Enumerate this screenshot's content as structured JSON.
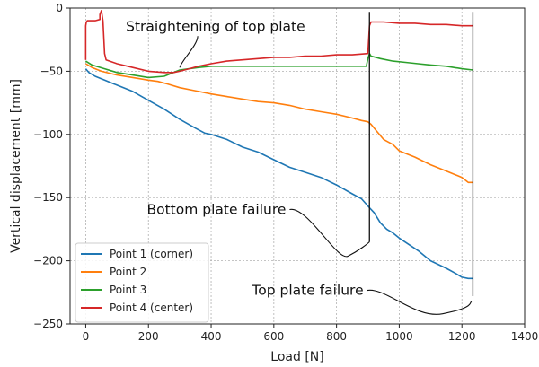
{
  "chart_data": {
    "type": "line",
    "xlabel": "Load [N]",
    "ylabel": "Vertical displacement  [mm]",
    "xlim": [
      -50,
      1400
    ],
    "ylim": [
      -250,
      0
    ],
    "xticks": [
      0,
      200,
      400,
      600,
      800,
      1000,
      1200,
      1400
    ],
    "yticks": [
      0,
      -50,
      -100,
      -150,
      -200,
      -250
    ],
    "grid": true,
    "legend_position": "lower-left",
    "series": [
      {
        "name": "Point 1 (corner)",
        "color": "#1f77b4",
        "x": [
          0,
          10,
          30,
          60,
          100,
          150,
          200,
          250,
          300,
          350,
          380,
          400,
          450,
          500,
          550,
          600,
          650,
          700,
          750,
          800,
          850,
          880,
          905,
          920,
          940,
          960,
          980,
          1000,
          1030,
          1060,
          1100,
          1150,
          1180,
          1200,
          1220,
          1235
        ],
        "y": [
          -48,
          -51,
          -54,
          -57,
          -61,
          -66,
          -73,
          -80,
          -88,
          -95,
          -99,
          -100,
          -104,
          -110,
          -114,
          -120,
          -126,
          -130,
          -134,
          -140,
          -147,
          -151,
          -158,
          -162,
          -170,
          -175,
          -178,
          -182,
          -187,
          -192,
          -200,
          -206,
          -210,
          -213,
          -214,
          -214
        ]
      },
      {
        "name": "Point 2",
        "color": "#ff7f0e",
        "x": [
          0,
          20,
          50,
          100,
          150,
          200,
          230,
          260,
          300,
          340,
          360,
          400,
          450,
          500,
          550,
          600,
          650,
          700,
          750,
          800,
          850,
          880,
          900,
          910,
          930,
          950,
          980,
          1000,
          1050,
          1100,
          1150,
          1200,
          1220,
          1235
        ],
        "y": [
          -44,
          -47,
          -50,
          -53,
          -55,
          -57,
          -58,
          -60,
          -63,
          -65,
          -66,
          -68,
          -70,
          -72,
          -74,
          -75,
          -77,
          -80,
          -82,
          -84,
          -87,
          -89,
          -90,
          -92,
          -98,
          -104,
          -108,
          -113,
          -118,
          -124,
          -129,
          -134,
          -138,
          -138
        ]
      },
      {
        "name": "Point 3",
        "color": "#2ca02c",
        "x": [
          0,
          20,
          60,
          100,
          150,
          200,
          250,
          280,
          300,
          330,
          360,
          400,
          450,
          500,
          550,
          600,
          650,
          700,
          750,
          800,
          850,
          895,
          900,
          905,
          910,
          940,
          980,
          1020,
          1060,
          1100,
          1150,
          1200,
          1235
        ],
        "y": [
          -42,
          -45,
          -48,
          -51,
          -53,
          -55,
          -54,
          -51,
          -49,
          -48,
          -47,
          -46,
          -46,
          -46,
          -46,
          -46,
          -46,
          -46,
          -46,
          -46,
          -46,
          -46,
          -40,
          -36,
          -38,
          -40,
          -42,
          -43,
          -44,
          -45,
          -46,
          -48,
          -49
        ]
      },
      {
        "name": "Point 4 (center)",
        "color": "#d62728",
        "x": [
          0,
          0,
          2,
          5,
          30,
          45,
          45,
          50,
          55,
          60,
          65,
          100,
          150,
          200,
          250,
          280,
          300,
          330,
          360,
          400,
          450,
          500,
          550,
          600,
          650,
          700,
          750,
          800,
          850,
          900,
          905,
          910,
          950,
          1000,
          1050,
          1100,
          1150,
          1200,
          1235
        ],
        "y": [
          -41,
          -14,
          -11,
          -10,
          -10,
          -9,
          -5,
          -2,
          -10,
          -36,
          -41,
          -44,
          -47,
          -50,
          -51,
          -51,
          -50,
          -48,
          -46,
          -44,
          -42,
          -41,
          -40,
          -39,
          -39,
          -38,
          -38,
          -37,
          -37,
          -36,
          -14,
          -11,
          -11,
          -12,
          -12,
          -13,
          -13,
          -14,
          -14
        ]
      }
    ],
    "annotations": [
      {
        "text": "Straightening of top plate",
        "x": 300,
        "y": -47,
        "label_x": 128,
        "label_y": -18
      },
      {
        "text": "Bottom plate failure",
        "x": 905,
        "y": -185,
        "label_x": 195,
        "label_y": -163
      },
      {
        "text": "Top plate failure",
        "x": 1230,
        "y": -232,
        "label_x": 530,
        "label_y": -227
      }
    ],
    "vertical_markers": [
      {
        "x": 905,
        "y_from": -3,
        "y_to": -185
      },
      {
        "x": 1235,
        "y_from": -3,
        "y_to": -228
      }
    ]
  }
}
